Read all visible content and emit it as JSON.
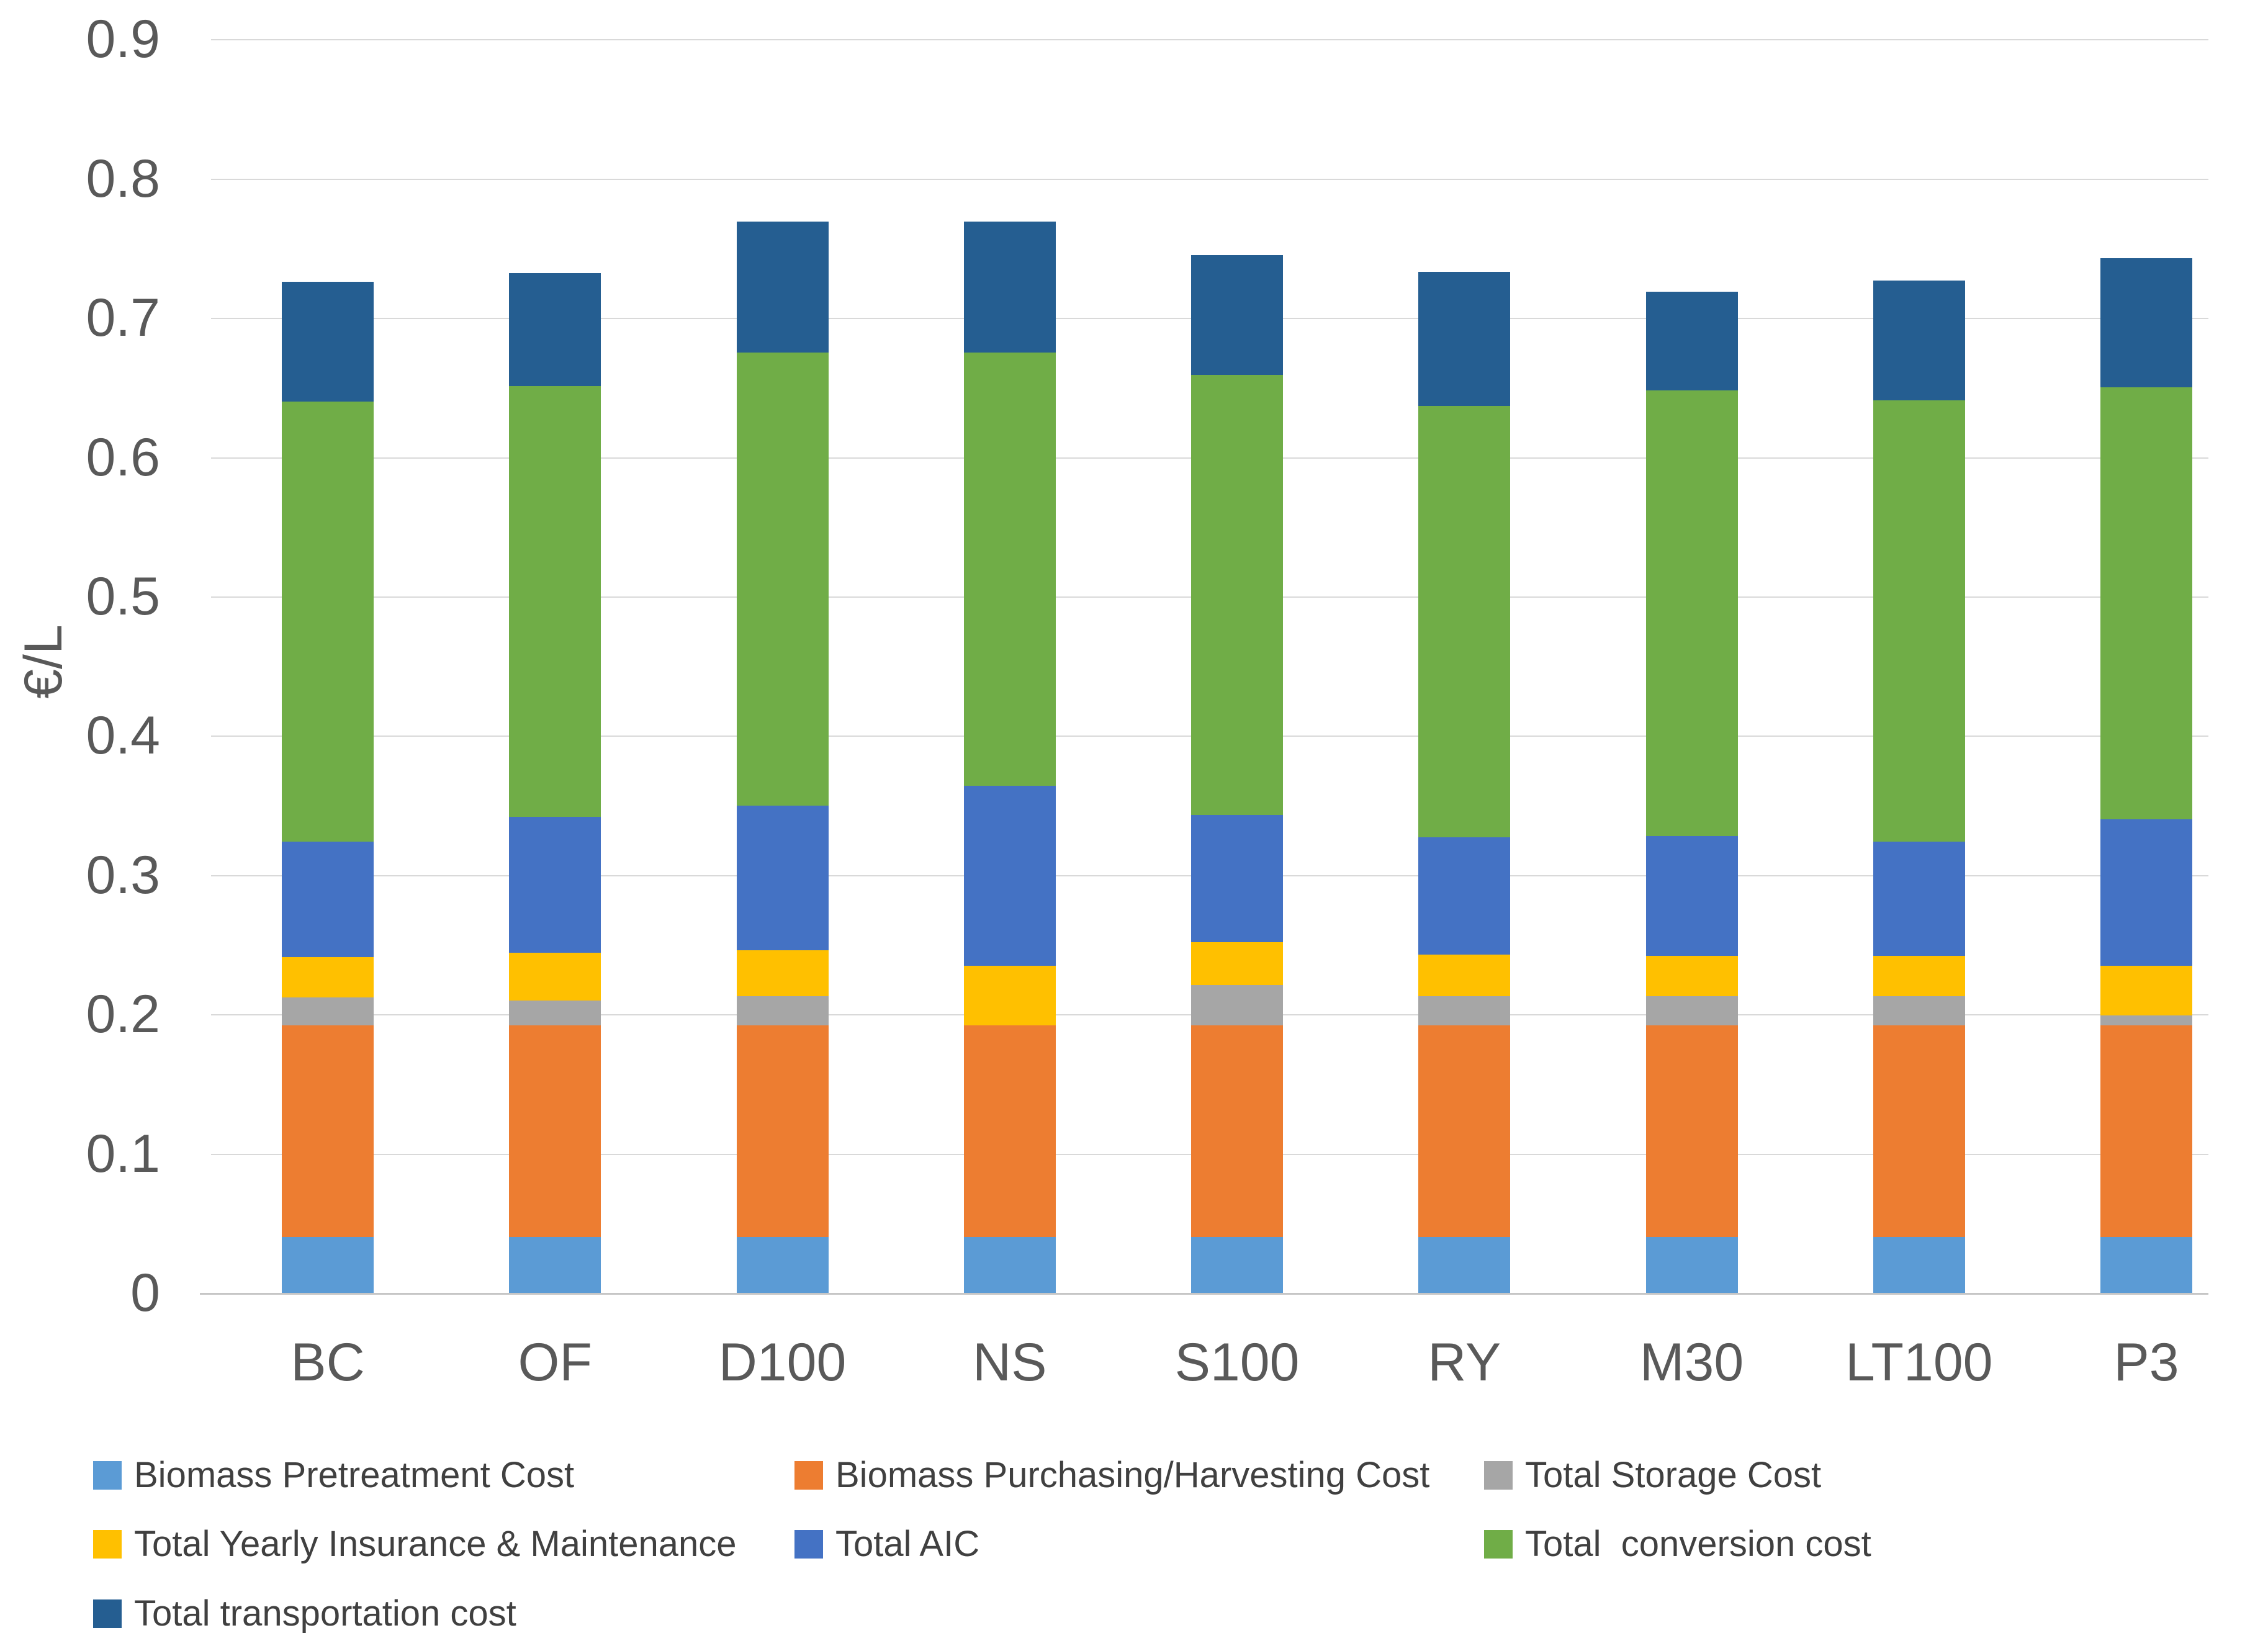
{
  "chart_data": {
    "type": "bar",
    "stacked": true,
    "title": "",
    "ylabel": "€/L",
    "xlabel": "",
    "ylim": [
      0,
      0.9
    ],
    "ytick_step": 0.1,
    "ytick_labels": [
      "0",
      "0.1",
      "0.2",
      "0.3",
      "0.4",
      "0.5",
      "0.6",
      "0.7",
      "0.8",
      "0.9"
    ],
    "grid": "horizontal",
    "legend_position": "bottom",
    "categories": [
      "BC",
      "OF",
      "D100",
      "NS",
      "S100",
      "RY",
      "M30",
      "LT100",
      "P3"
    ],
    "series": [
      {
        "name": "Biomass Pretreatment Cost",
        "color": "#5B9BD5",
        "values": [
          0.04,
          0.04,
          0.04,
          0.04,
          0.04,
          0.04,
          0.04,
          0.04,
          0.04
        ]
      },
      {
        "name": "Biomass Purchasing/Harvesting Cost",
        "color": "#ED7D31",
        "values": [
          0.152,
          0.152,
          0.152,
          0.152,
          0.152,
          0.152,
          0.152,
          0.152,
          0.152
        ]
      },
      {
        "name": "Total Storage Cost",
        "color": "#A6A6A6",
        "values": [
          0.02,
          0.018,
          0.021,
          0.0,
          0.029,
          0.021,
          0.021,
          0.021,
          0.007
        ]
      },
      {
        "name": "Total Yearly Insurance & Maintenance",
        "color": "#FFC000",
        "values": [
          0.029,
          0.034,
          0.033,
          0.043,
          0.031,
          0.03,
          0.029,
          0.029,
          0.036
        ]
      },
      {
        "name": "Total AIC",
        "color": "#4472C4",
        "values": [
          0.083,
          0.098,
          0.104,
          0.129,
          0.091,
          0.084,
          0.086,
          0.082,
          0.105
        ]
      },
      {
        "name": "Total  conversion cost",
        "color": "#70AD47",
        "values": [
          0.316,
          0.309,
          0.325,
          0.311,
          0.316,
          0.31,
          0.32,
          0.317,
          0.31
        ]
      },
      {
        "name": "Total transportation cost",
        "color": "#255E91",
        "values": [
          0.086,
          0.081,
          0.094,
          0.094,
          0.086,
          0.096,
          0.071,
          0.086,
          0.093
        ]
      }
    ]
  },
  "colors": {
    "axis_text": "#595959",
    "legend_text": "#404040",
    "gridline": "#D9D9D9",
    "baseline": "#C6C6C6",
    "background": "#FFFFFF"
  }
}
